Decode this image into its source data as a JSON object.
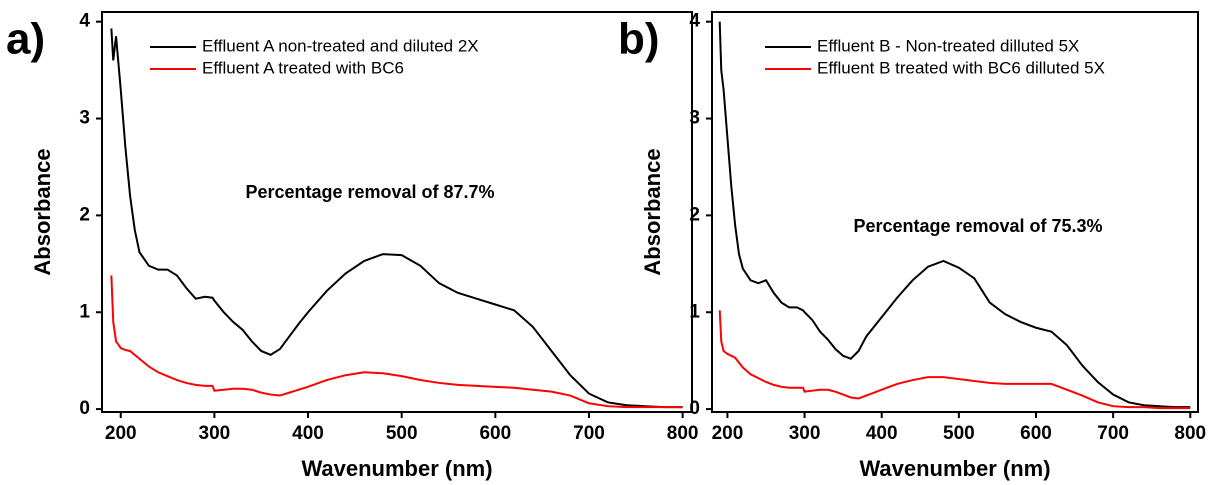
{
  "chart_data": [
    {
      "type": "line",
      "panel_label": "a)",
      "xlabel": "Wavenumber (nm)",
      "ylabel": "Absorbance",
      "annotation": "Percentage removal of 87.7%",
      "legend": "upper center",
      "xlim": [
        180,
        810
      ],
      "ylim": [
        -0.03,
        4.1
      ],
      "xticks": [
        200,
        300,
        400,
        500,
        600,
        700,
        800
      ],
      "yticks": [
        0,
        1,
        2,
        3,
        4
      ],
      "x": [
        190,
        192,
        195,
        200,
        205,
        210,
        215,
        220,
        230,
        240,
        250,
        260,
        270,
        280,
        290,
        298,
        300,
        310,
        320,
        330,
        340,
        350,
        360,
        370,
        380,
        390,
        400,
        420,
        440,
        460,
        480,
        500,
        520,
        540,
        560,
        580,
        600,
        620,
        640,
        660,
        680,
        700,
        720,
        740,
        760,
        780,
        800
      ],
      "series": [
        {
          "name": "Effluent A non-treated and diluted 2X",
          "color": "#000000",
          "values": [
            3.93,
            3.6,
            3.85,
            3.3,
            2.7,
            2.2,
            1.85,
            1.62,
            1.48,
            1.44,
            1.44,
            1.38,
            1.25,
            1.14,
            1.16,
            1.15,
            1.12,
            1.0,
            0.9,
            0.82,
            0.7,
            0.6,
            0.56,
            0.62,
            0.75,
            0.88,
            1.0,
            1.22,
            1.4,
            1.53,
            1.6,
            1.59,
            1.48,
            1.3,
            1.2,
            1.14,
            1.08,
            1.02,
            0.85,
            0.6,
            0.35,
            0.16,
            0.07,
            0.04,
            0.03,
            0.02,
            0.02
          ]
        },
        {
          "name": "Effluent A treated with BC6",
          "color": "#ff0000",
          "values": [
            1.38,
            0.9,
            0.7,
            0.63,
            0.61,
            0.6,
            0.56,
            0.52,
            0.44,
            0.38,
            0.34,
            0.3,
            0.27,
            0.25,
            0.24,
            0.24,
            0.19,
            0.2,
            0.21,
            0.21,
            0.2,
            0.17,
            0.15,
            0.14,
            0.17,
            0.2,
            0.23,
            0.3,
            0.35,
            0.38,
            0.37,
            0.34,
            0.3,
            0.27,
            0.25,
            0.24,
            0.23,
            0.22,
            0.2,
            0.18,
            0.14,
            0.06,
            0.03,
            0.02,
            0.02,
            0.02,
            0.02
          ]
        }
      ]
    },
    {
      "type": "line",
      "panel_label": "b)",
      "xlabel": "Wavenumber (nm)",
      "ylabel": "Absorbance",
      "annotation": "Percentage removal of 75.3%",
      "legend": "upper center",
      "xlim": [
        180,
        810
      ],
      "ylim": [
        -0.03,
        4.1
      ],
      "xticks": [
        200,
        300,
        400,
        500,
        600,
        700,
        800
      ],
      "yticks": [
        0,
        1,
        2,
        3,
        4
      ],
      "x": [
        190,
        192,
        195,
        200,
        205,
        210,
        215,
        220,
        230,
        240,
        250,
        260,
        270,
        280,
        290,
        298,
        300,
        310,
        320,
        330,
        340,
        350,
        360,
        370,
        380,
        390,
        400,
        420,
        440,
        460,
        480,
        500,
        520,
        540,
        560,
        580,
        600,
        620,
        640,
        660,
        680,
        700,
        720,
        740,
        760,
        780,
        800
      ],
      "series": [
        {
          "name": "Effluent B - Non-treated dilluted 5X",
          "color": "#000000",
          "values": [
            4.0,
            3.5,
            3.3,
            2.8,
            2.3,
            1.9,
            1.6,
            1.45,
            1.33,
            1.3,
            1.33,
            1.2,
            1.1,
            1.05,
            1.05,
            1.02,
            1.0,
            0.92,
            0.8,
            0.72,
            0.62,
            0.55,
            0.52,
            0.6,
            0.75,
            0.85,
            0.95,
            1.15,
            1.33,
            1.47,
            1.53,
            1.46,
            1.35,
            1.1,
            0.98,
            0.9,
            0.84,
            0.8,
            0.66,
            0.45,
            0.28,
            0.15,
            0.07,
            0.04,
            0.03,
            0.02,
            0.02
          ]
        },
        {
          "name": "Effluent B treated with BC6 dilluted 5X",
          "color": "#ff0000",
          "values": [
            1.02,
            0.7,
            0.6,
            0.57,
            0.55,
            0.53,
            0.48,
            0.43,
            0.36,
            0.32,
            0.28,
            0.25,
            0.23,
            0.22,
            0.22,
            0.22,
            0.18,
            0.19,
            0.2,
            0.2,
            0.18,
            0.15,
            0.12,
            0.11,
            0.14,
            0.17,
            0.2,
            0.26,
            0.3,
            0.33,
            0.33,
            0.31,
            0.29,
            0.27,
            0.26,
            0.26,
            0.26,
            0.26,
            0.2,
            0.14,
            0.07,
            0.03,
            0.02,
            0.02,
            0.01,
            0.01,
            0.01
          ]
        }
      ]
    }
  ]
}
